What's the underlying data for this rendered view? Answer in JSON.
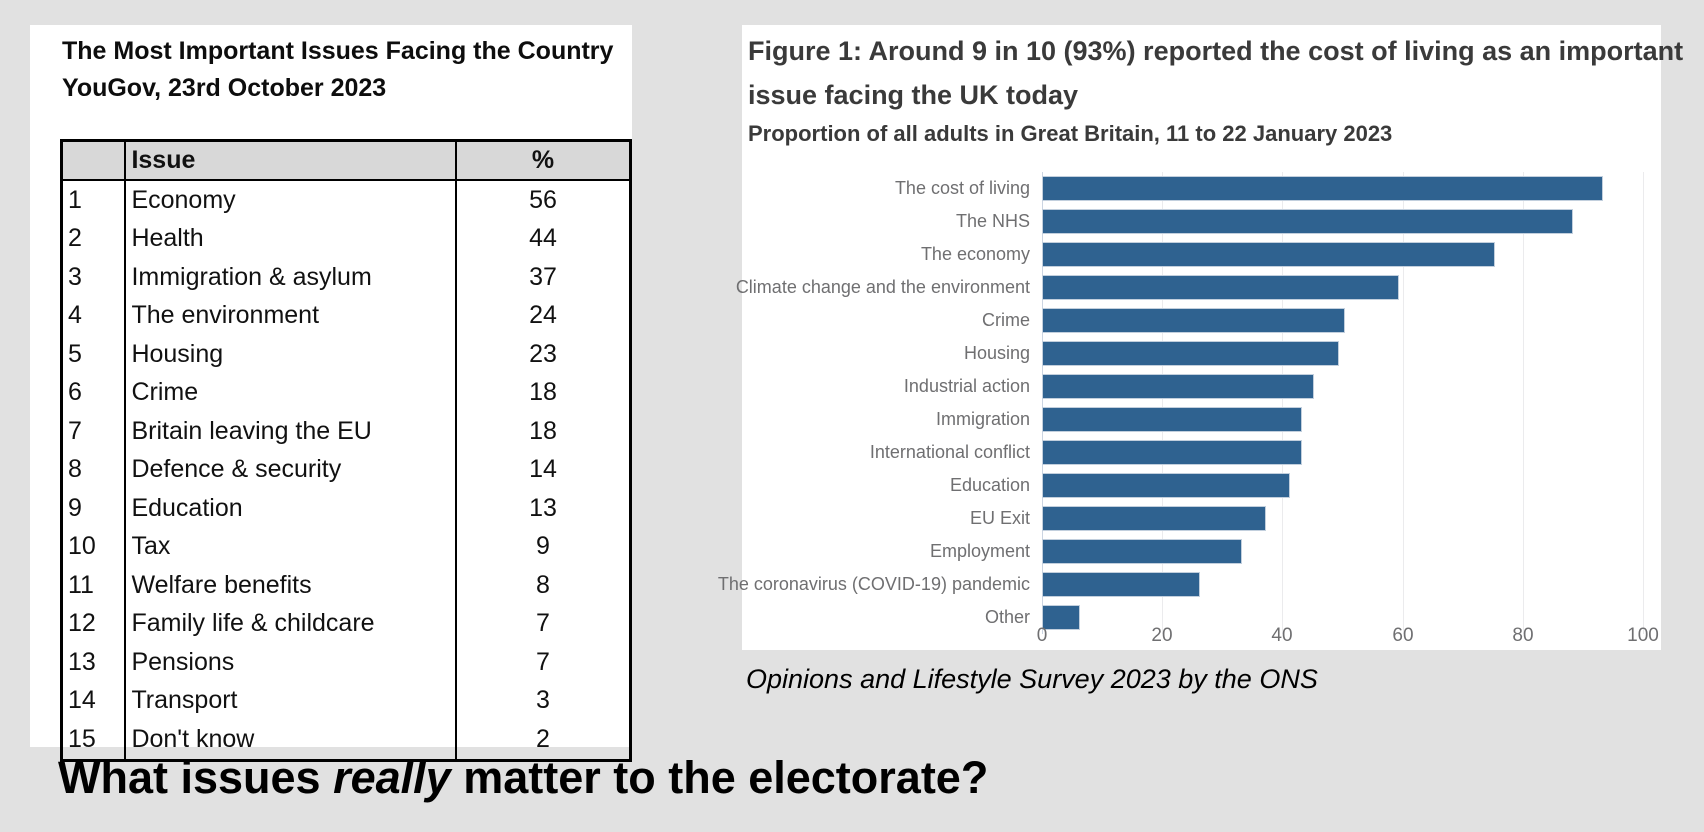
{
  "page": {
    "heading": {
      "pre": "What issues ",
      "emphasis": "really",
      "post": " matter to the electorate?"
    }
  },
  "figure_panel": {
    "caption": "Opinions and Lifestyle Survey 2023 by the ONS"
  },
  "colors": {
    "page_background": "#e1e1e1",
    "panel_background": "#ffffff",
    "bar_fill": "#2f6290",
    "table_header_background": "#d8d8d8",
    "figure_text": "#3a3a3a",
    "axis_label_gray": "#6f6f71"
  },
  "chart_data": [
    {
      "type": "table",
      "title": "The Most Important Issues Facing the Country",
      "subtitle": "YouGov, 23rd October 2023",
      "columns": [
        "",
        "Issue",
        "%"
      ],
      "rows": [
        [
          "1",
          "Economy",
          "56"
        ],
        [
          "2",
          "Health",
          "44"
        ],
        [
          "3",
          "Immigration & asylum",
          "37"
        ],
        [
          "4",
          "The environment",
          "24"
        ],
        [
          "5",
          "Housing",
          "23"
        ],
        [
          "6",
          "Crime",
          "18"
        ],
        [
          "7",
          "Britain leaving the EU",
          "18"
        ],
        [
          "8",
          "Defence & security",
          "14"
        ],
        [
          "9",
          "Education",
          "13"
        ],
        [
          "10",
          "Tax",
          "9"
        ],
        [
          "11",
          "Welfare benefits",
          "8"
        ],
        [
          "12",
          "Family life & childcare",
          "7"
        ],
        [
          "13",
          "Pensions",
          "7"
        ],
        [
          "14",
          "Transport",
          "3"
        ],
        [
          "15",
          "Don't know",
          "2"
        ]
      ]
    },
    {
      "type": "bar",
      "orientation": "horizontal",
      "title": "Figure 1: Around 9 in 10 (93%) reported the cost of living as an important issue facing the UK today",
      "subtitle": "Proportion of all adults in Great Britain, 11 to 22 January 2023",
      "categories": [
        "The cost of living",
        "The NHS",
        "The economy",
        "Climate change and the environment",
        "Crime",
        "Housing",
        "Industrial action",
        "Immigration",
        "International conflict",
        "Education",
        "EU Exit",
        "Employment",
        "The coronavirus (COVID-19) pandemic",
        "Other"
      ],
      "values": [
        93,
        88,
        75,
        59,
        50,
        49,
        45,
        43,
        43,
        41,
        37,
        33,
        26,
        6
      ],
      "xlabel": "",
      "ylabel": "",
      "xlim": [
        0,
        100
      ],
      "xticks": [
        0,
        20,
        40,
        60,
        80,
        100
      ],
      "grid": true,
      "legend": false,
      "bar_color": "#2f6290"
    }
  ]
}
